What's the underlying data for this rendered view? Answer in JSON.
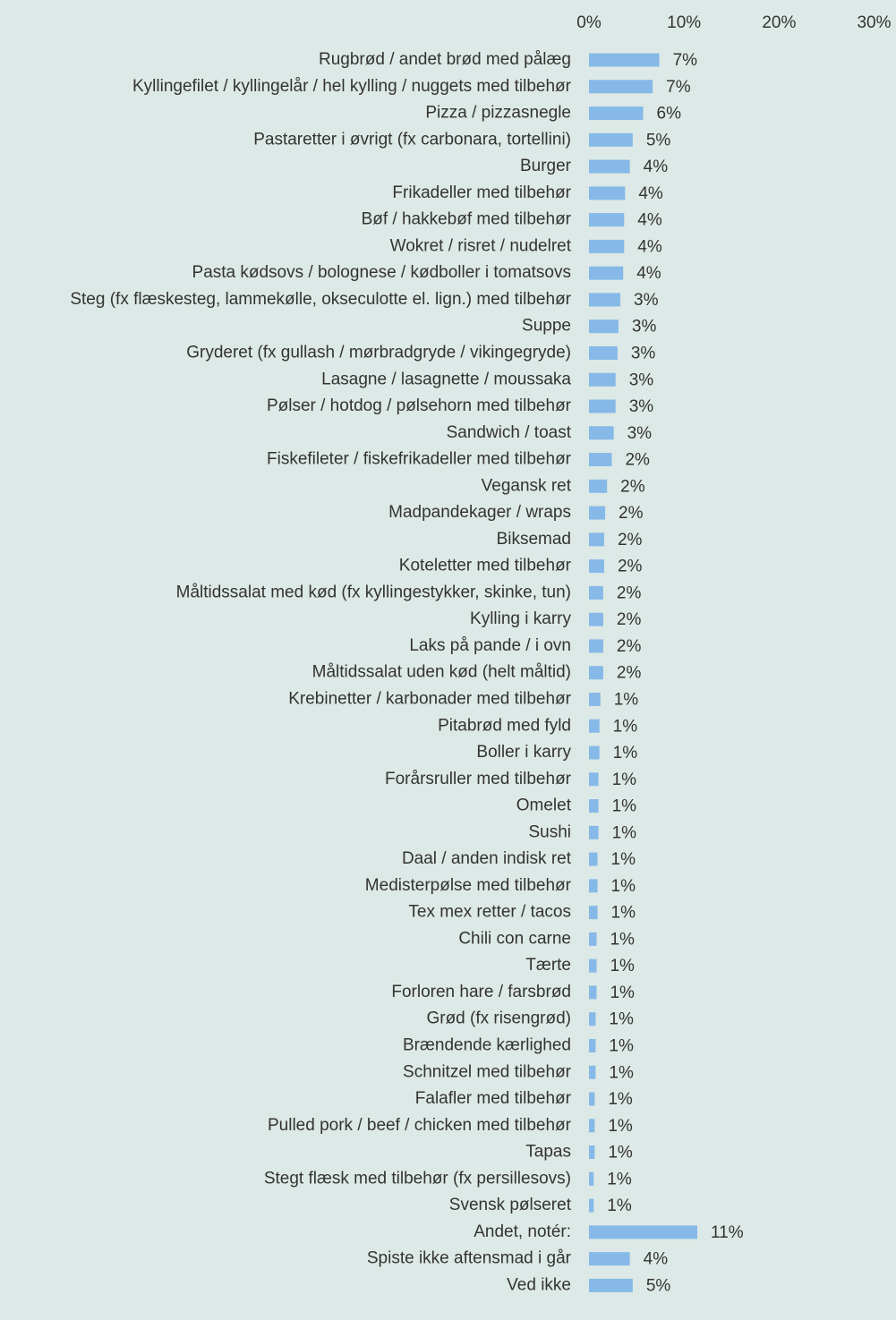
{
  "chart_data": {
    "type": "barh",
    "color": "#86b9e8",
    "grid": false,
    "xlim": [
      0,
      30
    ],
    "xticks": [
      {
        "value": 0,
        "label": "0%"
      },
      {
        "value": 10,
        "label": "10%"
      },
      {
        "value": 20,
        "label": "20%"
      },
      {
        "value": 30,
        "label": "30%"
      }
    ],
    "categories": [
      "Rugbrød / andet brød med pålæg",
      "Kyllingefilet / kyllingelår / hel kylling / nuggets med tilbehør",
      "Pizza / pizzasnegle",
      "Pastaretter i øvrigt (fx carbonara, tortellini)",
      "Burger",
      "Frikadeller med tilbehør",
      "Bøf / hakkebøf med tilbehør",
      "Wokret / risret / nudelret",
      "Pasta kødsovs / bolognese / kødboller i tomatsovs",
      "Steg (fx flæskesteg, lammekølle, okseculotte el. lign.) med tilbehør",
      "Suppe",
      "Gryderet (fx gullash / mørbradgryde / vikingegryde)",
      "Lasagne / lasagnette / moussaka",
      "Pølser / hotdog / pølsehorn med tilbehør",
      "Sandwich / toast",
      "Fiskefileter / fiskefrikadeller med tilbehør",
      "Vegansk ret",
      "Madpandekager / wraps",
      "Biksemad",
      "Koteletter med tilbehør",
      "Måltidssalat med kød (fx kyllingestykker, skinke, tun)",
      "Kylling i karry",
      "Laks på pande / i ovn",
      "Måltidssalat uden kød (helt måltid)",
      "Krebinetter / karbonader med tilbehør",
      "Pitabrød med fyld",
      "Boller i karry",
      "Forårsruller med tilbehør",
      "Omelet",
      "Sushi",
      "Daal / anden indisk ret",
      "Medisterpølse med tilbehør",
      "Tex mex retter / tacos",
      "Chili con carne",
      "Tærte",
      "Forloren hare / farsbrød",
      "Grød (fx risengrød)",
      "Brændende kærlighed",
      "Schnitzel med tilbehør",
      "Falafler med tilbehør",
      "Pulled pork / beef / chicken med tilbehør",
      "Tapas",
      "Stegt flæsk med tilbehør (fx persillesovs)",
      "Svensk pølseret",
      "Andet, notér:",
      "Spiste ikke aftensmad i går",
      "Ved ikke"
    ],
    "values": [
      7.4,
      6.7,
      5.7,
      4.6,
      4.3,
      3.8,
      3.7,
      3.7,
      3.6,
      3.3,
      3.1,
      3.0,
      2.8,
      2.8,
      2.6,
      2.4,
      1.9,
      1.7,
      1.6,
      1.6,
      1.5,
      1.5,
      1.5,
      1.5,
      1.2,
      1.1,
      1.1,
      1.0,
      1.0,
      1.0,
      0.9,
      0.9,
      0.9,
      0.8,
      0.8,
      0.8,
      0.7,
      0.7,
      0.7,
      0.6,
      0.6,
      0.6,
      0.5,
      0.5,
      11.4,
      4.3,
      4.6
    ],
    "value_labels": [
      "7%",
      "7%",
      "6%",
      "5%",
      "4%",
      "4%",
      "4%",
      "4%",
      "4%",
      "3%",
      "3%",
      "3%",
      "3%",
      "3%",
      "3%",
      "2%",
      "2%",
      "2%",
      "2%",
      "2%",
      "2%",
      "2%",
      "2%",
      "2%",
      "1%",
      "1%",
      "1%",
      "1%",
      "1%",
      "1%",
      "1%",
      "1%",
      "1%",
      "1%",
      "1%",
      "1%",
      "1%",
      "1%",
      "1%",
      "1%",
      "1%",
      "1%",
      "1%",
      "1%",
      "11%",
      "4%",
      "5%"
    ]
  }
}
